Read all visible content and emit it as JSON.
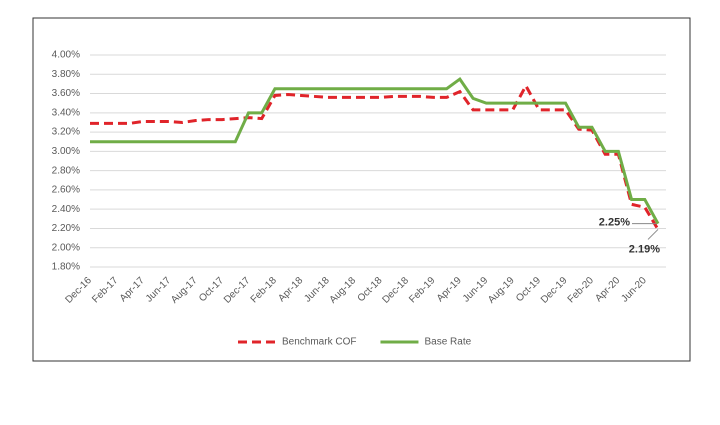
{
  "chart_data": {
    "type": "line",
    "categories": [
      "Dec-16",
      null,
      "Feb-17",
      null,
      "Apr-17",
      null,
      "Jun-17",
      null,
      "Aug-17",
      null,
      "Oct-17",
      null,
      "Dec-17",
      null,
      "Feb-18",
      null,
      "Apr-18",
      null,
      "Jun-18",
      null,
      "Aug-18",
      null,
      "Oct-18",
      null,
      "Dec-18",
      null,
      "Feb-19",
      null,
      "Apr-19",
      null,
      "Jun-19",
      null,
      "Aug-19",
      null,
      "Oct-19",
      null,
      "Dec-19",
      null,
      "Feb-20",
      null,
      "Apr-20",
      null,
      "Jun-20",
      null
    ],
    "series": [
      {
        "name": "Benchmark COF",
        "color": "#e0242a",
        "dashed": true,
        "values": [
          3.29,
          3.29,
          3.29,
          3.29,
          3.31,
          3.31,
          3.31,
          3.3,
          3.32,
          3.33,
          3.33,
          3.34,
          3.35,
          3.34,
          3.58,
          3.59,
          3.58,
          3.57,
          3.56,
          3.56,
          3.56,
          3.56,
          3.56,
          3.57,
          3.57,
          3.57,
          3.56,
          3.56,
          3.62,
          3.43,
          3.43,
          3.43,
          3.43,
          3.68,
          3.43,
          3.43,
          3.43,
          3.23,
          3.22,
          2.97,
          2.97,
          2.45,
          2.42,
          2.19
        ],
        "value_labels": [
          null,
          null,
          null,
          null,
          null,
          null,
          null,
          null,
          null,
          null,
          null,
          null,
          null,
          null,
          null,
          null,
          null,
          null,
          null,
          null,
          null,
          null,
          null,
          null,
          null,
          null,
          null,
          null,
          null,
          null,
          null,
          null,
          null,
          null,
          null,
          null,
          null,
          null,
          null,
          null,
          null,
          null,
          null,
          "2.19%"
        ]
      },
      {
        "name": "Base Rate",
        "color": "#70ad47",
        "dashed": false,
        "values": [
          3.1,
          3.1,
          3.1,
          3.1,
          3.1,
          3.1,
          3.1,
          3.1,
          3.1,
          3.1,
          3.1,
          3.1,
          3.4,
          3.4,
          3.65,
          3.65,
          3.65,
          3.65,
          3.65,
          3.65,
          3.65,
          3.65,
          3.65,
          3.65,
          3.65,
          3.65,
          3.65,
          3.65,
          3.75,
          3.55,
          3.5,
          3.5,
          3.5,
          3.5,
          3.5,
          3.5,
          3.5,
          3.25,
          3.25,
          3.0,
          3.0,
          2.5,
          2.5,
          2.25
        ],
        "value_labels": [
          null,
          null,
          null,
          null,
          null,
          null,
          null,
          null,
          null,
          null,
          null,
          null,
          null,
          null,
          null,
          null,
          null,
          null,
          null,
          null,
          null,
          null,
          null,
          null,
          null,
          null,
          null,
          null,
          null,
          null,
          null,
          null,
          null,
          null,
          null,
          null,
          null,
          null,
          null,
          null,
          null,
          null,
          null,
          "2.25%"
        ]
      }
    ],
    "ylim": [
      1.8,
      4.0
    ],
    "yticks": [
      {
        "value": 1.8,
        "label": "1.80%"
      },
      {
        "value": 2.0,
        "label": "2.00%"
      },
      {
        "value": 2.2,
        "label": "2.20%"
      },
      {
        "value": 2.4,
        "label": "2.40%"
      },
      {
        "value": 2.6,
        "label": "2.60%"
      },
      {
        "value": 2.8,
        "label": "2.80%"
      },
      {
        "value": 3.0,
        "label": "3.00%"
      },
      {
        "value": 3.2,
        "label": "3.20%"
      },
      {
        "value": 3.4,
        "label": "3.40%"
      },
      {
        "value": 3.6,
        "label": "3.60%"
      },
      {
        "value": 3.8,
        "label": "3.80%"
      },
      {
        "value": 4.0,
        "label": "4.00%"
      }
    ],
    "grid": true,
    "legend": "bottom"
  }
}
